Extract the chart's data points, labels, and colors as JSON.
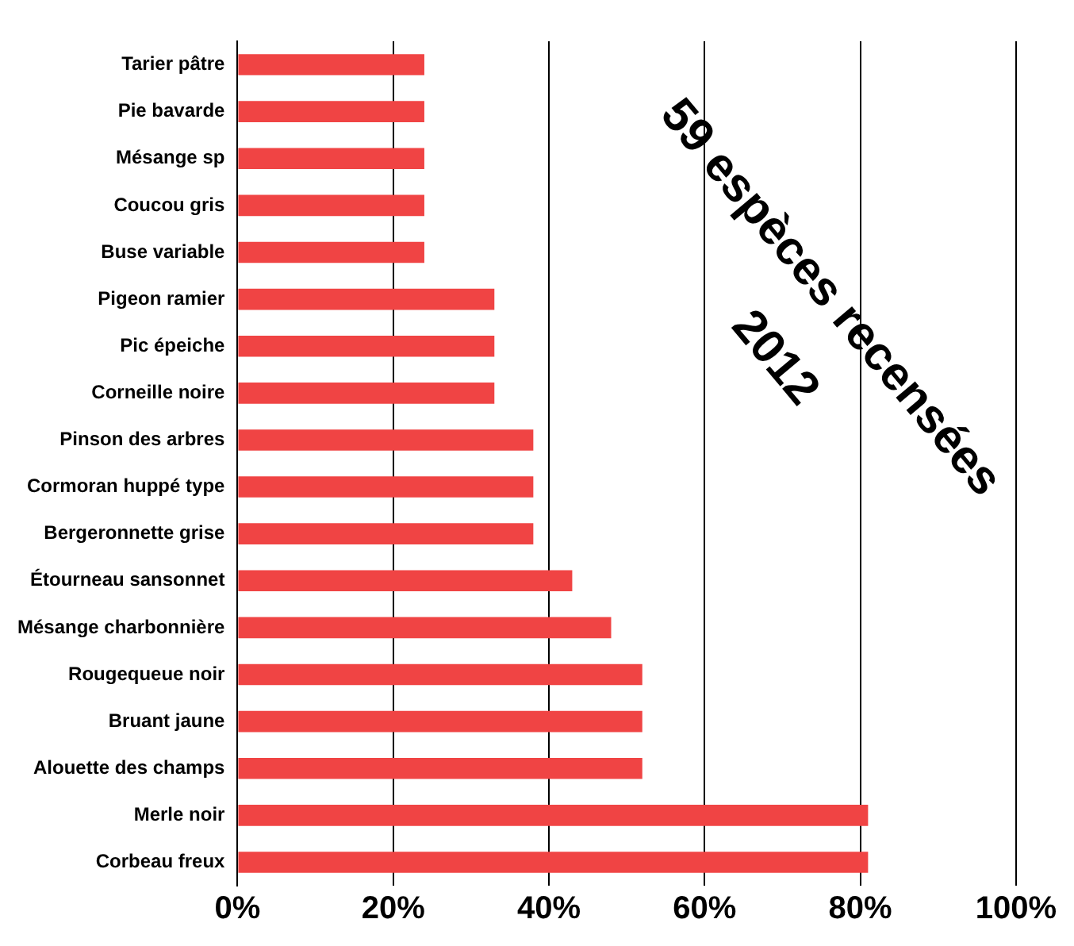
{
  "chart_data": {
    "type": "bar",
    "orientation": "horizontal",
    "categories": [
      "Tarier pâtre",
      "Pie bavarde",
      "Mésange sp",
      "Coucou gris",
      "Buse variable",
      "Pigeon ramier",
      "Pic épeiche",
      "Corneille noire",
      "Pinson des arbres",
      "Cormoran huppé type",
      "Bergeronnette grise",
      "Étourneau sansonnet",
      "Mésange charbonnière",
      "Rougequeue noir",
      "Bruant jaune",
      "Alouette des champs",
      "Merle noir",
      "Corbeau freux"
    ],
    "values": [
      24,
      24,
      24,
      24,
      24,
      33,
      33,
      33,
      38,
      38,
      38,
      43,
      48,
      52,
      52,
      52,
      81,
      81
    ],
    "color": "#f04444",
    "xlim": [
      0,
      100
    ],
    "xticks": [
      {
        "value": 0,
        "label": "0%"
      },
      {
        "value": 20,
        "label": "20%"
      },
      {
        "value": 40,
        "label": "40%"
      },
      {
        "value": 60,
        "label": "60%"
      },
      {
        "value": 80,
        "label": "80%"
      },
      {
        "value": 100,
        "label": "100%"
      }
    ],
    "grid": "x",
    "annotations": [
      "59 espèces recensées",
      "2012"
    ]
  }
}
